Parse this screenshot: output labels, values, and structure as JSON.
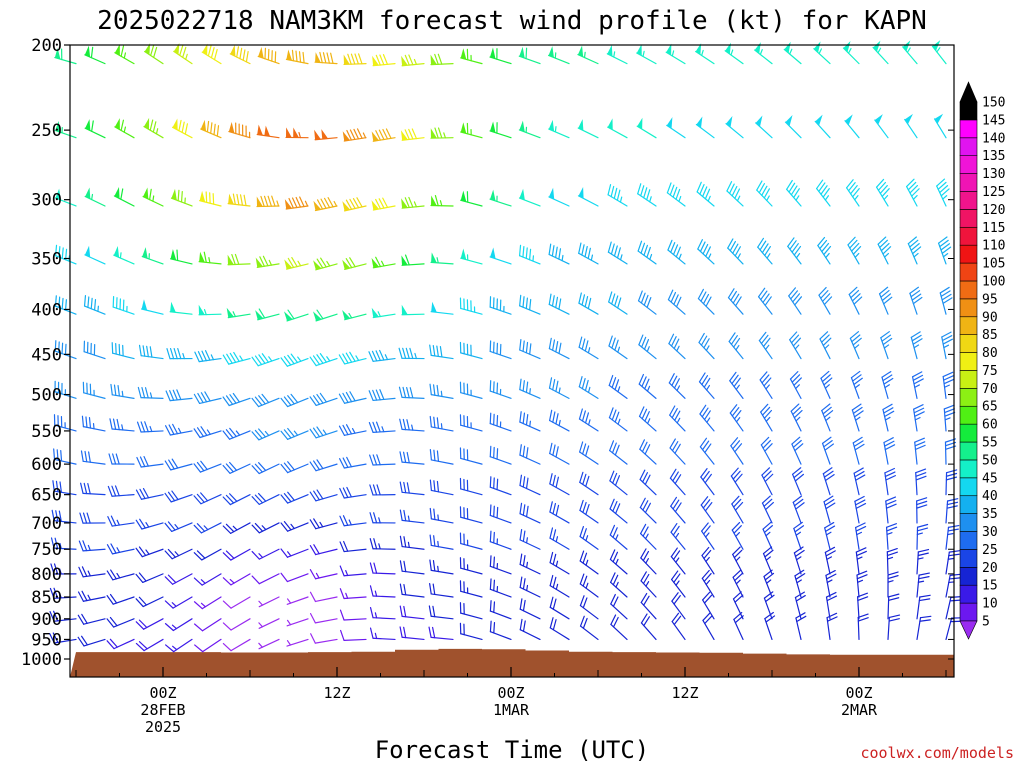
{
  "chart_data": {
    "type": "wind-barb-profile",
    "title": "2025022718 NAM3KM forecast wind profile (kt) for KAPN",
    "xlabel": "Forecast Time (UTC)",
    "ylabel": "",
    "y_scale": "log-pressure",
    "ylim_hpa": [
      1000,
      200
    ],
    "y_ticks": [
      "200",
      "250",
      "300",
      "350",
      "400",
      "450",
      "500",
      "550",
      "600",
      "650",
      "700",
      "750",
      "800",
      "850",
      "900",
      "950",
      "1000"
    ],
    "x_ticks": [
      {
        "hour": 6,
        "lines": [
          "00Z",
          "28FEB",
          "2025"
        ]
      },
      {
        "hour": 18,
        "lines": [
          "12Z"
        ]
      },
      {
        "hour": 30,
        "lines": [
          "00Z",
          "1MAR"
        ]
      },
      {
        "hour": 42,
        "lines": [
          "12Z"
        ]
      },
      {
        "hour": 54,
        "lines": [
          "00Z",
          "2MAR"
        ]
      }
    ],
    "forecast_hours": [
      0,
      60
    ],
    "colorbar": {
      "unit": "kt",
      "labels": [
        "5",
        "10",
        "15",
        "20",
        "25",
        "30",
        "35",
        "40",
        "45",
        "50",
        "55",
        "60",
        "65",
        "70",
        "75",
        "80",
        "85",
        "90",
        "95",
        "100",
        "105",
        "110",
        "115",
        "120",
        "125",
        "130",
        "135",
        "140",
        "145",
        "150"
      ],
      "colors": [
        "#9a2cf0",
        "#6c18f0",
        "#3a1ae8",
        "#1624d4",
        "#1a45e6",
        "#1e6cf0",
        "#1e90f0",
        "#14b0f0",
        "#14d8f0",
        "#14f0c8",
        "#14f08c",
        "#14ec3c",
        "#50f014",
        "#8cf014",
        "#c8f014",
        "#f0f014",
        "#f0d814",
        "#f0b414",
        "#f09014",
        "#f06c14",
        "#f04414",
        "#f01414",
        "#f0143c",
        "#f01464",
        "#f0148c",
        "#f014b4",
        "#f014d8",
        "#e014f0",
        "#ff00ff",
        "#000000"
      ]
    },
    "wind_levels_hpa": [
      210,
      255,
      305,
      355,
      405,
      455,
      505,
      550,
      600,
      650,
      700,
      750,
      800,
      850,
      900,
      950,
      1000
    ],
    "surface_pressure_hpa": [
      982,
      982,
      983,
      983,
      982,
      981,
      976,
      974,
      975,
      978,
      981,
      982,
      983,
      984,
      986,
      988,
      989
    ],
    "surface_hours": [
      0,
      5,
      10,
      13,
      16,
      19,
      22,
      25,
      28,
      31,
      34,
      37,
      40,
      43,
      46,
      49,
      52
    ],
    "terrain_color": "#a0522d"
  },
  "credit": "coolwx.com/models"
}
